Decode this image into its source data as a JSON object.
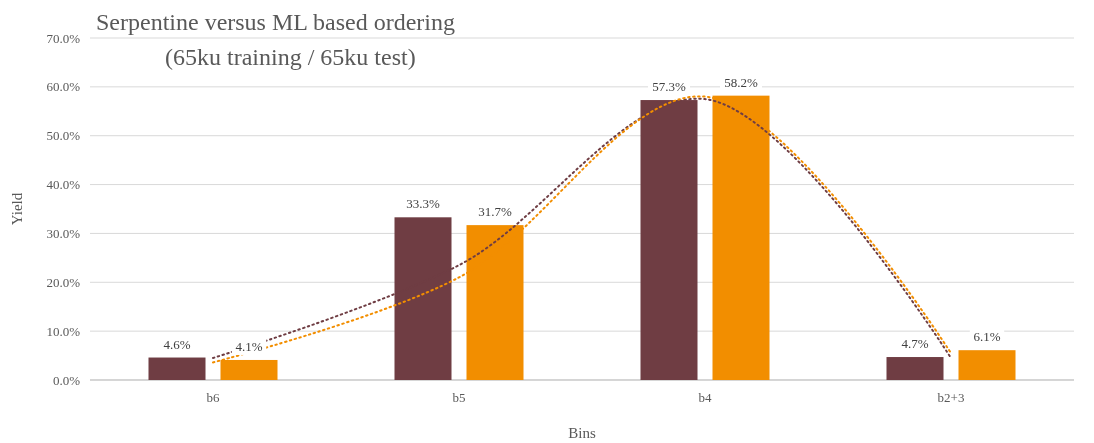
{
  "chart_data": {
    "type": "bar",
    "title": "Serpentine versus ML based ordering",
    "subtitle": "(65ku training / 65ku test)",
    "xlabel": "Bins",
    "ylabel": "Yield",
    "categories": [
      "b6",
      "b5",
      "b4",
      "b2+3"
    ],
    "series": [
      {
        "color": "#6f3d43",
        "values": [
          4.6,
          33.3,
          57.3,
          4.7
        ],
        "value_labels": [
          "4.6%",
          "33.3%",
          "57.3%",
          "4.7%"
        ]
      },
      {
        "color": "#f28e00",
        "values": [
          4.1,
          31.7,
          58.2,
          6.1
        ],
        "value_labels": [
          "4.1%",
          "31.7%",
          "58.2%",
          "6.1%"
        ]
      },
      {
        "type": "line",
        "color": "#6f3d43",
        "values": [
          4.5,
          23.5,
          57.5,
          4.5
        ],
        "line_style": "dotted"
      },
      {
        "type": "line",
        "color": "#f28e00",
        "values": [
          3.6,
          21,
          58,
          5.5
        ],
        "line_style": "dotted"
      }
    ],
    "ylim": [
      0,
      70
    ],
    "yticks": [
      {
        "value": 0,
        "label": "0.0%"
      },
      {
        "value": 10,
        "label": "10.0%"
      },
      {
        "value": 20,
        "label": "20.0%"
      },
      {
        "value": 30,
        "label": "30.0%"
      },
      {
        "value": 40,
        "label": "40.0%"
      },
      {
        "value": 50,
        "label": "50.0%"
      },
      {
        "value": 60,
        "label": "60.0%"
      },
      {
        "value": 70,
        "label": "70.0%"
      }
    ],
    "grid": "y"
  }
}
